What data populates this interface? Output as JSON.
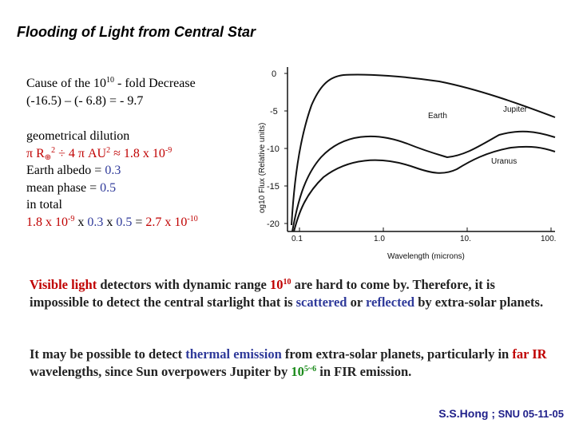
{
  "title": "Flooding of Light from Central Star",
  "cause": {
    "line1_pre": "Cause of  the 10",
    "line1_exp": "10",
    "line1_post": " - fold Decrease",
    "line2": "(-16.5) – (- 6.8)  = - 9.7"
  },
  "calc": {
    "dilution_label": "geometrical dilution",
    "dilution_pi": "π R",
    "dilution_sun": "⊕",
    "dilution_exp": "2",
    "dilution_mid": " ÷ 4 π AU",
    "dilution_exp2": "2",
    "dilution_approx": "  ≈ ",
    "dilution_val": "1.8 x 10",
    "dilution_val_exp": "-9",
    "albedo_label": "Earth albedo  = ",
    "albedo_val": "0.3",
    "phase_label": "mean phase    = ",
    "phase_val": "0.5",
    "total_label": "in total",
    "total_a": "1.8 x 10",
    "total_a_exp": "-9",
    "total_x1": "  x  ",
    "total_b": "0.3",
    "total_x2": "  x  ",
    "total_c": "0.5",
    "total_eq": "  =  ",
    "total_r": "2.7 x 10",
    "total_r_exp": "-10"
  },
  "para1": {
    "a": "Visible light",
    "b": " detectors with dynamic range ",
    "c": "10",
    "c_exp": "10",
    "d": " are hard to come by. Therefore, it is impossible to detect the central starlight that is ",
    "e": "scattered",
    "f": " or ",
    "g": "reflected",
    "h": " by extra-solar planets."
  },
  "para2": {
    "a": "It may be possible to detect ",
    "b": "thermal emission",
    "c": " from extra-solar planets, particularly in ",
    "d": "far IR",
    "e": " wavelengths, since Sun overpowers Jupiter by  ",
    "f": "10",
    "f_exp": "5~6",
    "g": " in FIR emission."
  },
  "footer": {
    "name": "S.S.Hong ;",
    "org": "SNU 05-11-05"
  },
  "figure": {
    "ylabel": "og10 Flux (Relative units)",
    "xlabel": "Wavelength (microns)",
    "y_ticks": [
      "0",
      "-5",
      "-10",
      "-15",
      "-20"
    ],
    "x_ticks": [
      "0.1",
      "1.0",
      "10.",
      "100."
    ],
    "curves": [
      "Earth",
      "Jupiter",
      "Uranus"
    ]
  },
  "colors": {
    "red": "#c00000",
    "blue": "#2f3a9a",
    "green": "#1a8a1a",
    "footer": "#20208a"
  }
}
